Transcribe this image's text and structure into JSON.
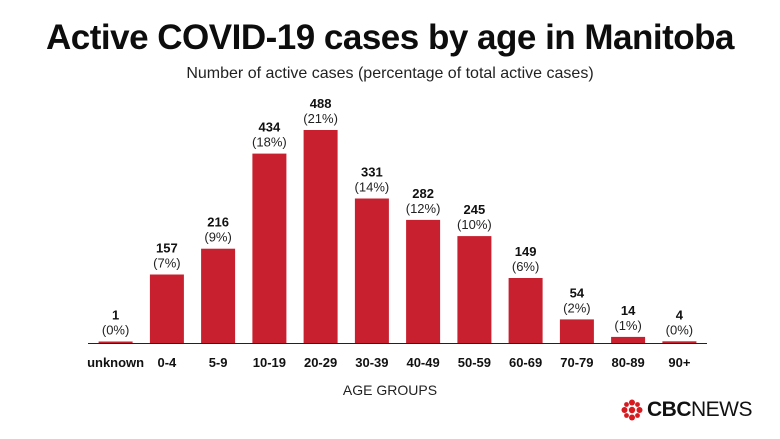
{
  "header": {
    "title": "Active COVID-19 cases by age in Manitoba",
    "subtitle": "Number of active cases (percentage of total active cases)"
  },
  "chart_data": {
    "type": "bar",
    "title": "Active COVID-19 cases by age in Manitoba",
    "subtitle": "Number of active cases (percentage of total active cases)",
    "xlabel": "AGE GROUPS",
    "ylabel": "",
    "categories": [
      "unknown",
      "0-4",
      "5-9",
      "10-19",
      "20-29",
      "30-39",
      "40-49",
      "50-59",
      "60-69",
      "70-79",
      "80-89",
      "90+"
    ],
    "values": [
      1,
      157,
      216,
      434,
      488,
      331,
      282,
      245,
      149,
      54,
      14,
      4
    ],
    "percent_labels": [
      "(0%)",
      "(7%)",
      "(9%)",
      "(18%)",
      "(21%)",
      "(14%)",
      "(12%)",
      "(10%)",
      "(6%)",
      "(2%)",
      "(1%)",
      "(0%)"
    ],
    "ylim": [
      0,
      488
    ],
    "grid": false,
    "bar_color": "#c8202f"
  },
  "branding": {
    "logo_cbc": "CBC",
    "logo_news": "NEWS",
    "logo_color": "#d71920"
  }
}
